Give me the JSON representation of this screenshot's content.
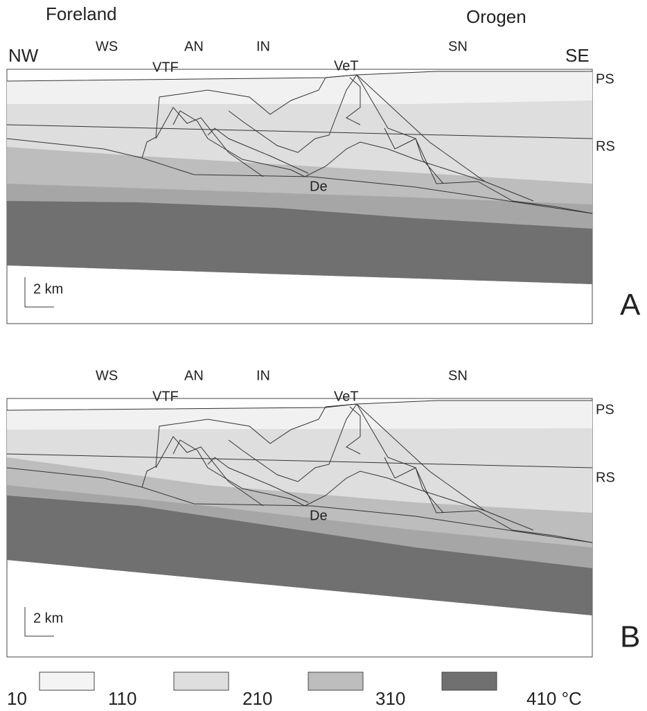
{
  "header": {
    "left": "Foreland",
    "right": "Orogen"
  },
  "panels": [
    {
      "label": "A",
      "directions": [
        "NW",
        "SE"
      ],
      "units": [
        "WS",
        "AN",
        "IN",
        "SN"
      ],
      "faults": [
        "VTF",
        "VeT"
      ],
      "surfaces": [
        "PS",
        "RS"
      ],
      "detachment": "De",
      "scale": "2 km"
    },
    {
      "label": "B",
      "units": [
        "WS",
        "AN",
        "IN",
        "SN"
      ],
      "faults": [
        "VTF",
        "VeT"
      ],
      "surfaces": [
        "PS",
        "RS"
      ],
      "detachment": "De",
      "scale": "2 km"
    }
  ],
  "legend": {
    "labels": [
      "10",
      "110",
      "210",
      "310",
      "410 °C"
    ]
  }
}
